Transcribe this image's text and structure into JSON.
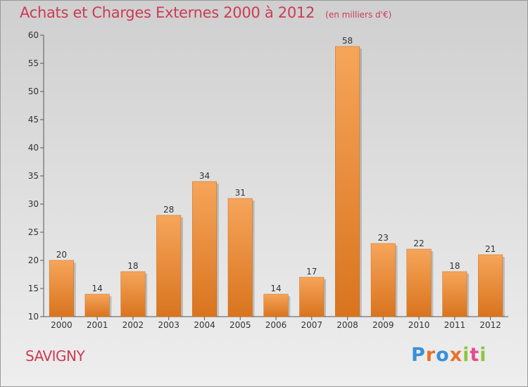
{
  "chart_data": {
    "type": "bar",
    "title": "Achats et Charges Externes 2000 à 2012",
    "subtitle": "(en milliers d'€)",
    "categories": [
      "2000",
      "2001",
      "2002",
      "2003",
      "2004",
      "2005",
      "2006",
      "2007",
      "2008",
      "2009",
      "2010",
      "2011",
      "2012"
    ],
    "values": [
      20,
      14,
      18,
      28,
      34,
      31,
      14,
      17,
      58,
      23,
      22,
      18,
      21
    ],
    "ylim": [
      10,
      60
    ],
    "yticks": [
      10,
      15,
      20,
      25,
      30,
      35,
      40,
      45,
      50,
      55,
      60
    ],
    "grid": false,
    "bar_color_top": "#f6a55a",
    "bar_color_bottom": "#d9741e"
  },
  "footer": {
    "commune": "SAVIGNY",
    "brand": "Proxiti",
    "brand_colors": [
      "#3a8fd8",
      "#e8732a",
      "#3a8fd8",
      "#e8732a",
      "#8cc63f",
      "#e84a8a",
      "#8cc63f"
    ]
  }
}
